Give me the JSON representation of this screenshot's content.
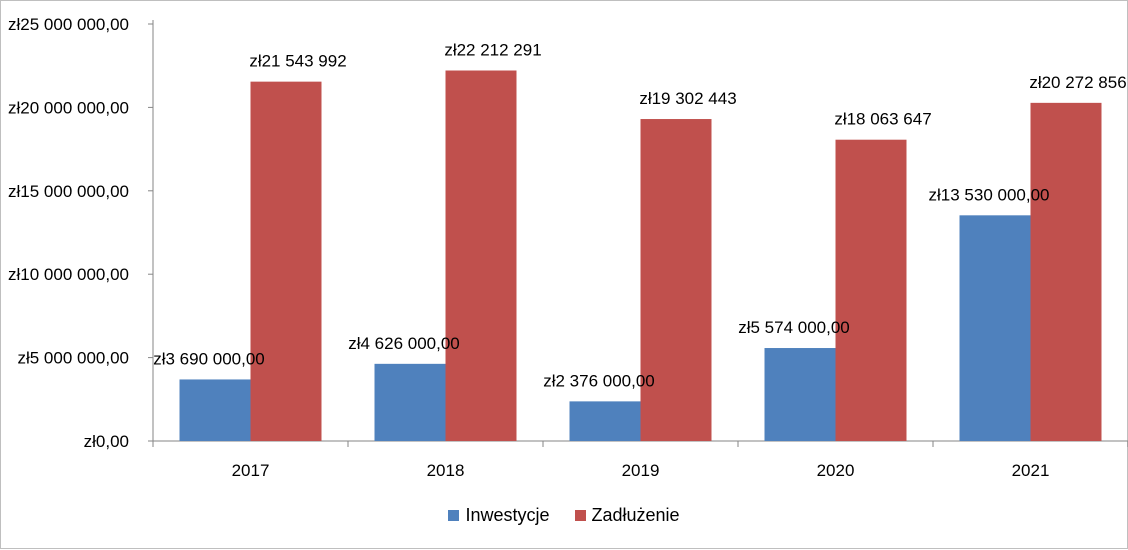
{
  "chart_data": {
    "type": "bar",
    "categories": [
      "2017",
      "2018",
      "2019",
      "2020",
      "2021"
    ],
    "series": [
      {
        "name": "Inwestycje",
        "color": "#4f81bd",
        "values": [
          3690000,
          4626000,
          2376000,
          5574000,
          13530000
        ],
        "labels": [
          "zł3 690 000,00",
          "zł4 626 000,00",
          "zł2 376 000,00",
          "zł5 574 000,00",
          "zł13 530 000,00"
        ]
      },
      {
        "name": "Zadłużenie",
        "color": "#c0504d",
        "values": [
          21543992,
          22212291,
          19302443,
          18063647,
          20272856
        ],
        "labels": [
          "zł21 543 992",
          "zł22 212 291",
          "zł19 302 443",
          "zł18 063 647",
          "zł20 272 856"
        ]
      }
    ],
    "yticks": [
      0,
      5000000,
      10000000,
      15000000,
      20000000,
      25000000
    ],
    "ytick_labels": [
      "zł0,00",
      "zł5 000 000,00",
      "zł10 000 000,00",
      "zł15 000 000,00",
      "zł20 000 000,00",
      "zł25 000 000,00"
    ],
    "ylim": [
      0,
      25000000
    ],
    "grid": false,
    "legend_position": "bottom"
  }
}
